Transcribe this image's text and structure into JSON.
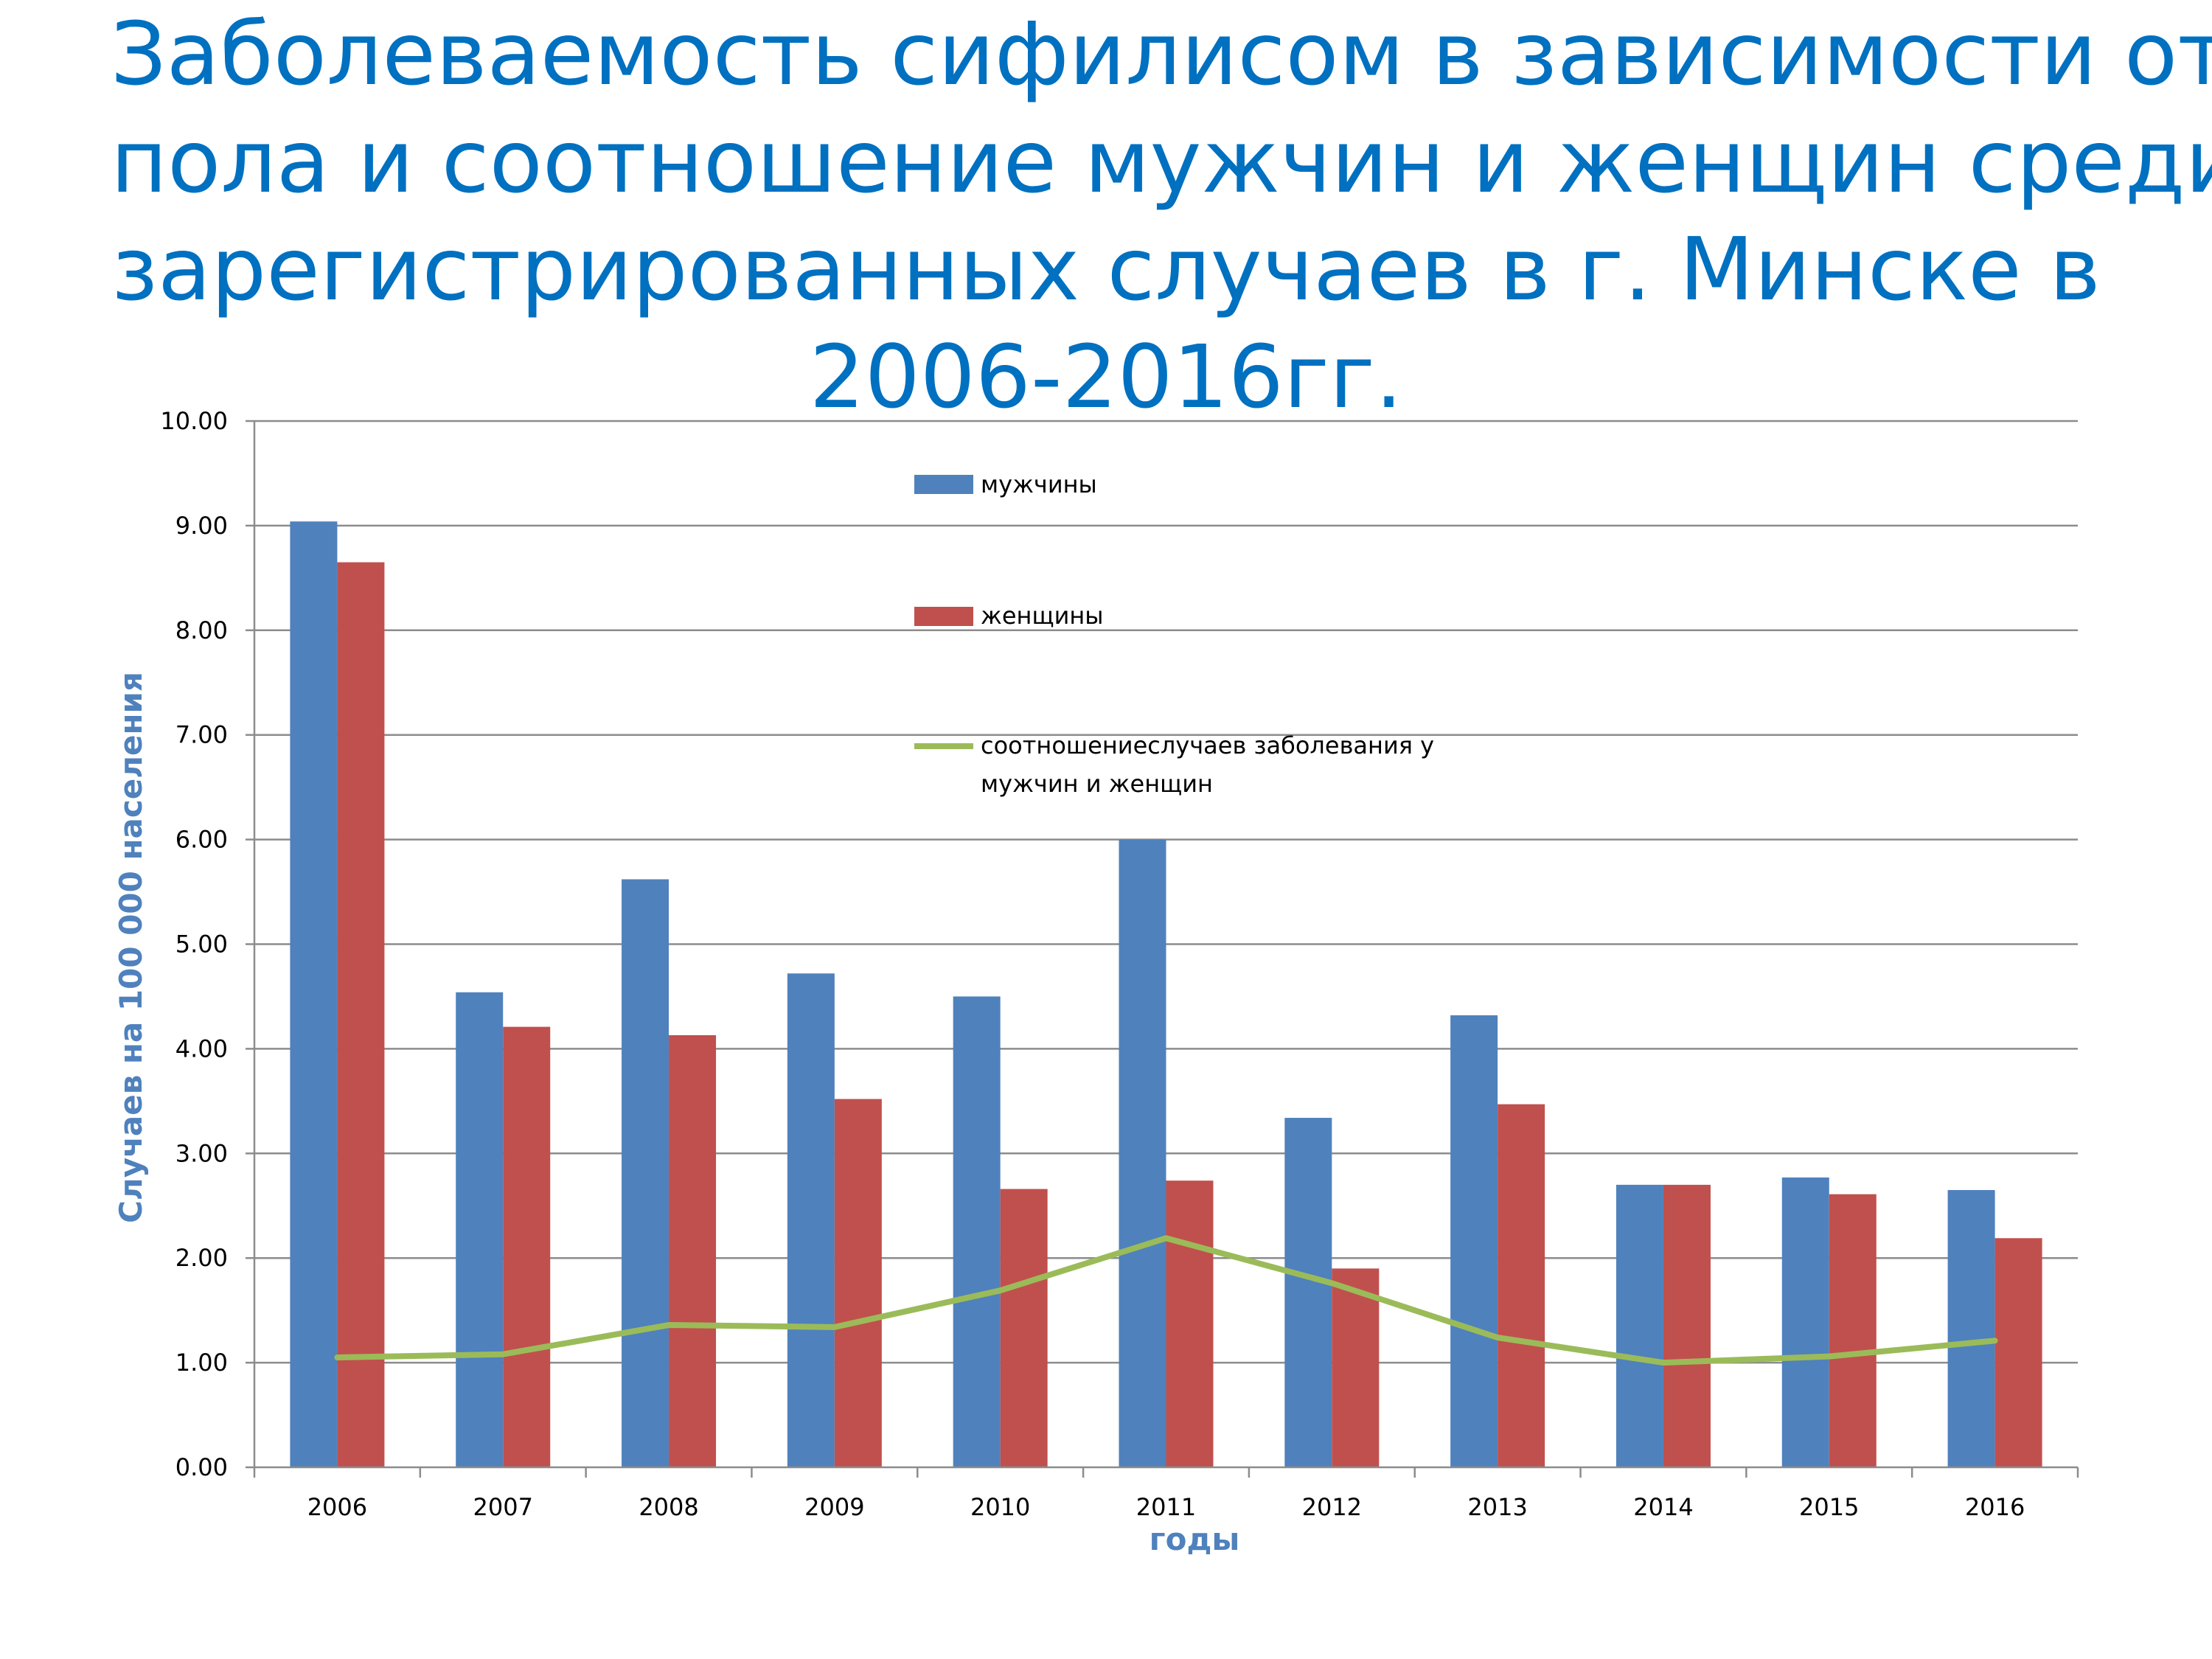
{
  "title_lines": [
    "Заболеваемость сифилисом в зависимости от",
    "пола и соотношение мужчин и женщин среди",
    "зарегистрированных случаев в г. Минске в",
    "2006-2016гг."
  ],
  "colors": {
    "title": "#0070c0",
    "men": "#4f81bd",
    "women": "#c0504d",
    "ratio": "#9bbb59",
    "axis_title": "#4f81bd"
  },
  "chart_data": {
    "type": "bar",
    "categories": [
      "2006",
      "2007",
      "2008",
      "2009",
      "2010",
      "2011",
      "2012",
      "2013",
      "2014",
      "2015",
      "2016"
    ],
    "series": [
      {
        "name": "мужчины",
        "type": "bar",
        "values": [
          9.04,
          4.54,
          5.62,
          4.72,
          4.5,
          6.0,
          3.34,
          4.32,
          2.7,
          2.77,
          2.65
        ]
      },
      {
        "name": "женщины",
        "type": "bar",
        "values": [
          8.65,
          4.21,
          4.13,
          3.52,
          2.66,
          2.74,
          1.9,
          3.47,
          2.7,
          2.61,
          2.19
        ]
      },
      {
        "name": "соотношениеслучаев заболевания у мужчин и женщин",
        "type": "line",
        "values": [
          1.05,
          1.08,
          1.36,
          1.34,
          1.69,
          2.19,
          1.76,
          1.24,
          1.0,
          1.06,
          1.21
        ]
      }
    ],
    "legend_lines": {
      "men": "мужчины",
      "women": "женщины",
      "ratio_line1": "соотношениеслучаев заболевания у",
      "ratio_line2": "мужчин и женщин"
    },
    "y_ticks": [
      "0.00",
      "1.00",
      "2.00",
      "3.00",
      "4.00",
      "5.00",
      "6.00",
      "7.00",
      "8.00",
      "9.00",
      "10.00"
    ],
    "ylim": [
      0,
      10
    ],
    "xlabel": "годы",
    "ylabel": "Случаев на 100 000 населения",
    "grid": true,
    "legend_position": "top-center"
  }
}
